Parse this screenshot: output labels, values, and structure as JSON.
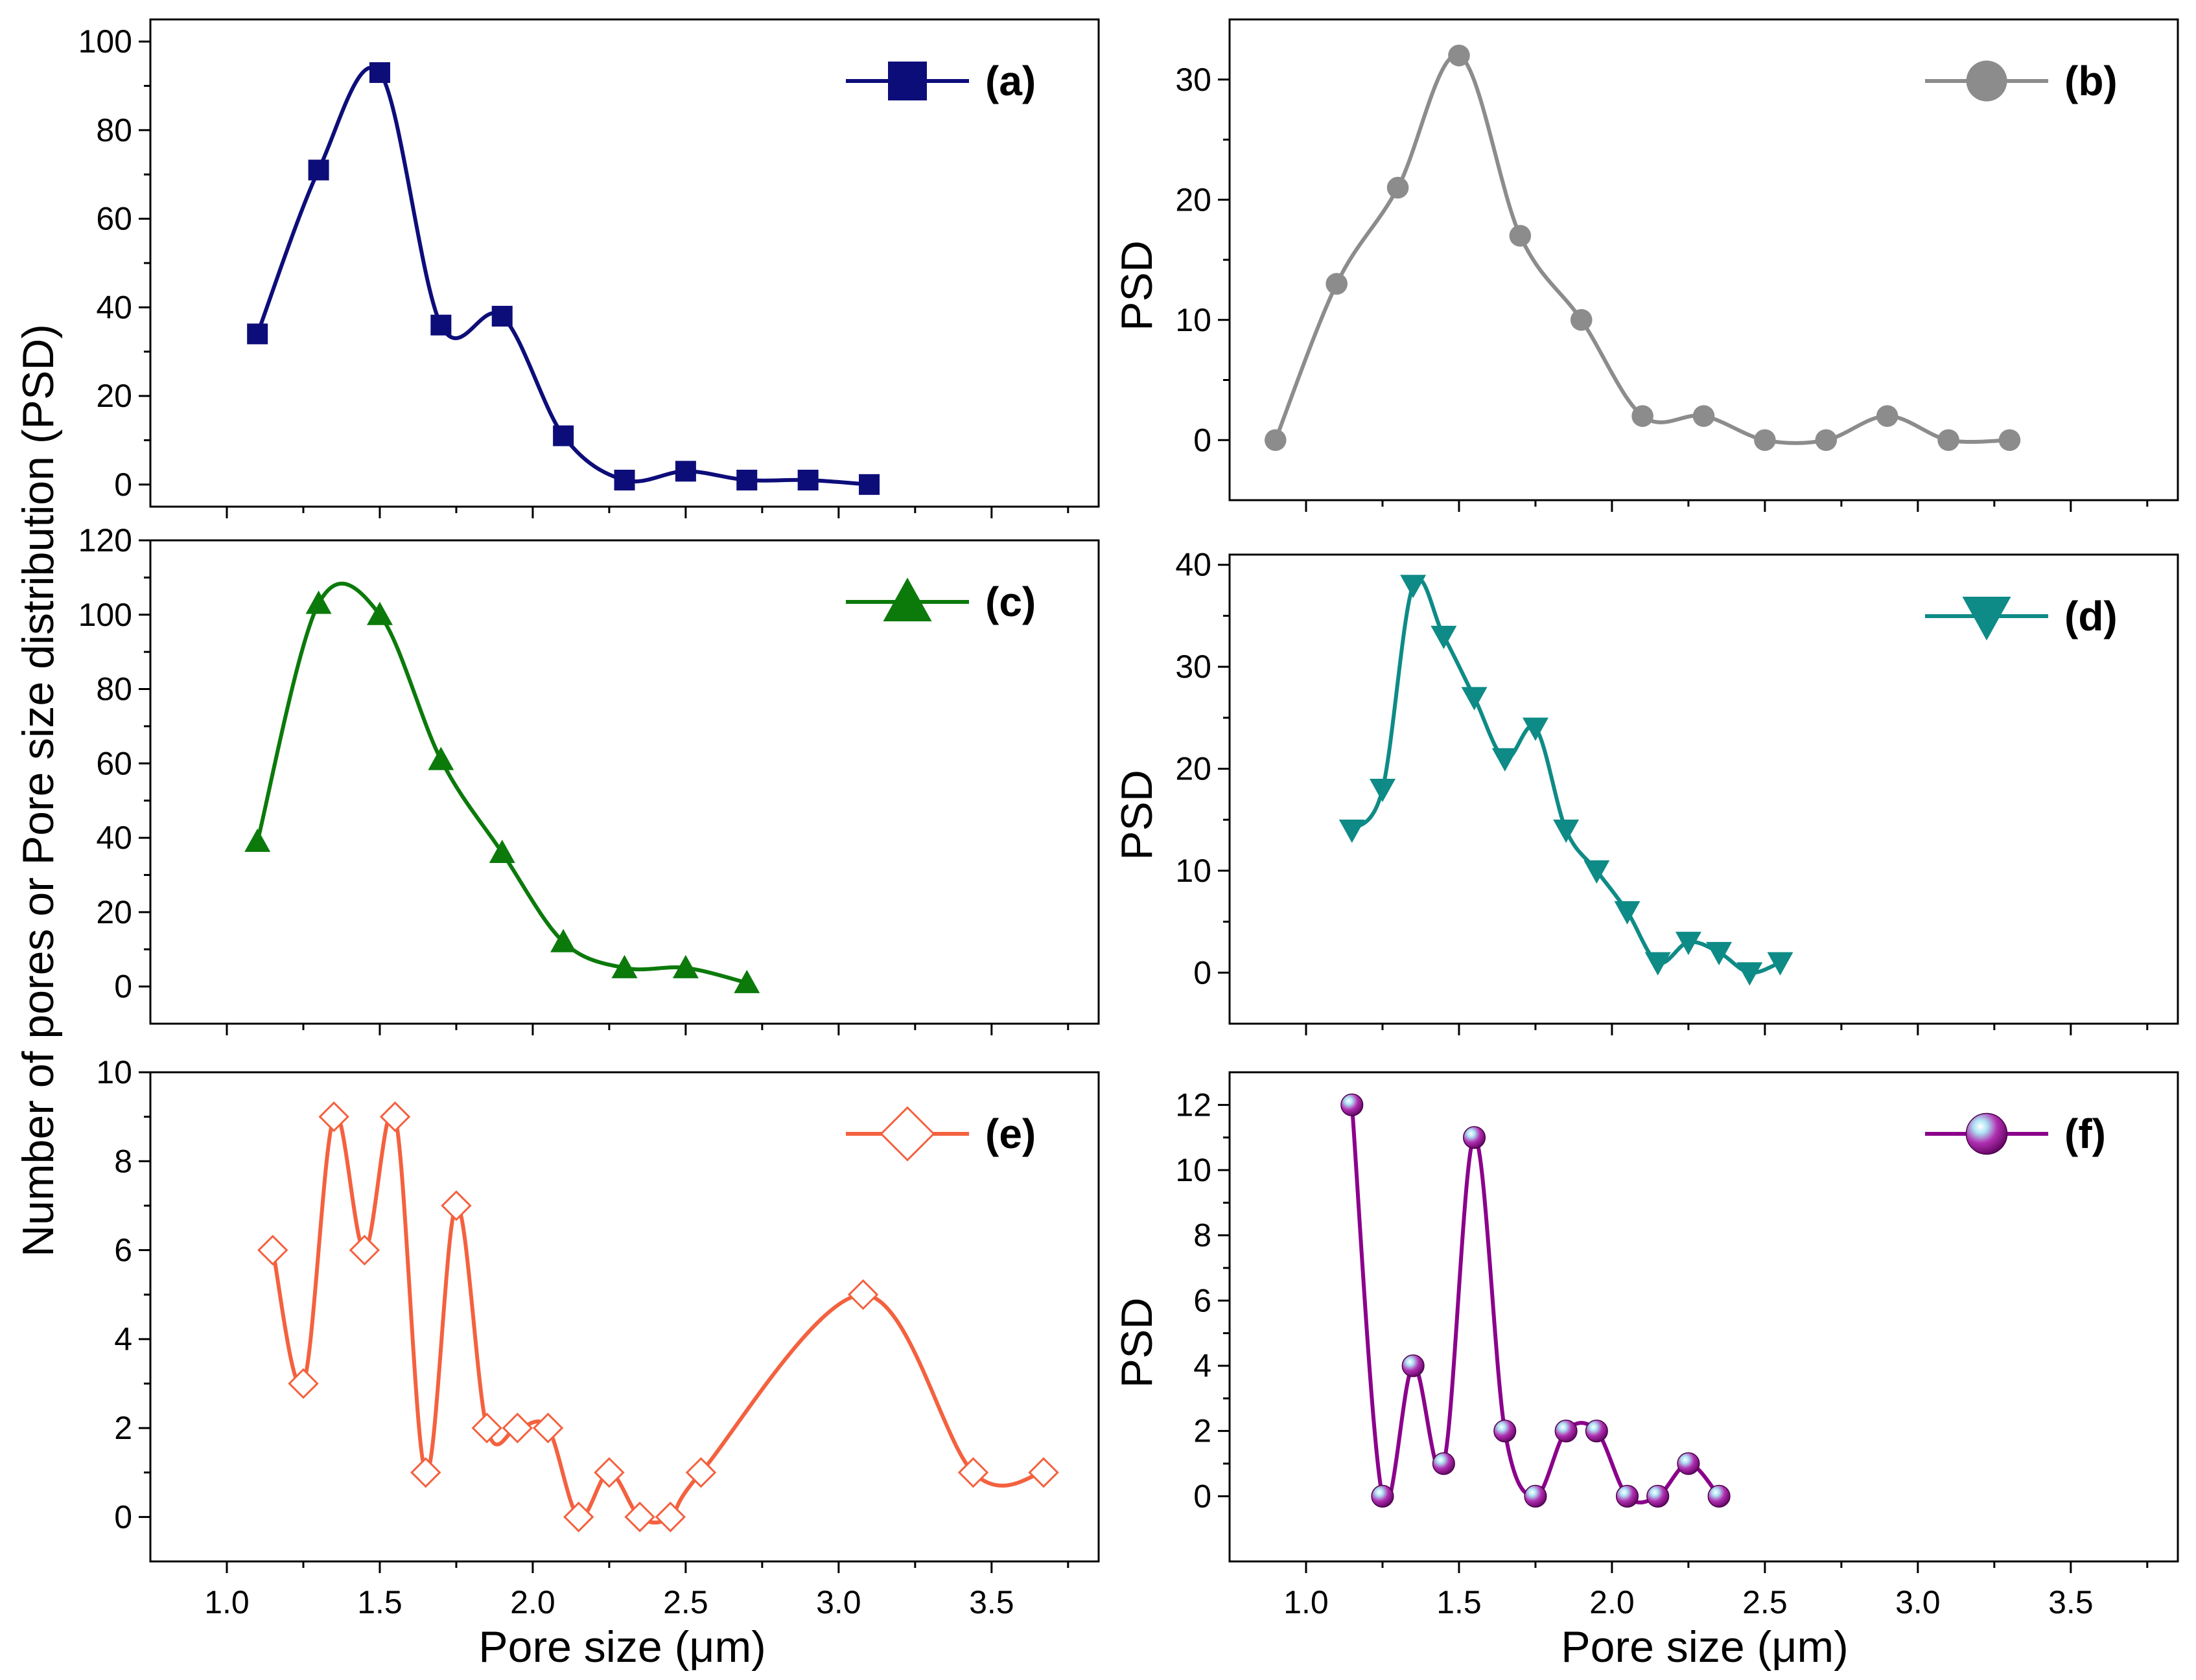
{
  "figure": {
    "shared_ylabel": "Number of pores or Pore size distribution (PSD)",
    "xlabel_left": "Pore size (μm)",
    "xlabel_right": "Pore size (μm)"
  },
  "chart_data": [
    {
      "id": "a",
      "type": "line",
      "legend": "(a)",
      "ylabel": "",
      "color": "#0d0d7a",
      "marker": "square",
      "xlim": [
        0.75,
        3.85
      ],
      "ylim": [
        -5,
        105
      ],
      "yticks": [
        0,
        20,
        40,
        60,
        80,
        100
      ],
      "xticks": [
        1.0,
        1.5,
        2.0,
        2.5,
        3.0,
        3.5
      ],
      "show_xticklabels": false,
      "series": [
        {
          "name": "(a)",
          "x": [
            1.1,
            1.3,
            1.5,
            1.7,
            1.9,
            2.1,
            2.3,
            2.5,
            2.7,
            2.9,
            3.1
          ],
          "y": [
            34,
            71,
            93,
            36,
            38,
            11,
            1,
            3,
            1,
            1,
            0
          ]
        }
      ]
    },
    {
      "id": "b",
      "type": "line",
      "legend": "(b)",
      "ylabel": "PSD",
      "color": "#8c8c8c",
      "marker": "circle",
      "xlim": [
        0.75,
        3.85
      ],
      "ylim": [
        -5,
        35
      ],
      "yticks": [
        0,
        10,
        20,
        30
      ],
      "xticks": [
        1.0,
        1.5,
        2.0,
        2.5,
        3.0,
        3.5
      ],
      "show_xticklabels": false,
      "series": [
        {
          "name": "(b)",
          "x": [
            0.9,
            1.1,
            1.3,
            1.5,
            1.7,
            1.9,
            2.1,
            2.3,
            2.5,
            2.7,
            2.9,
            3.1,
            3.3
          ],
          "y": [
            0,
            13,
            21,
            32,
            17,
            10,
            2,
            2,
            0,
            0,
            2,
            0,
            0
          ]
        }
      ]
    },
    {
      "id": "c",
      "type": "line",
      "legend": "(c)",
      "ylabel": "",
      "color": "#0b7a0b",
      "marker": "triangle-up",
      "xlim": [
        0.75,
        3.85
      ],
      "ylim": [
        -10,
        120
      ],
      "yticks": [
        0,
        20,
        40,
        60,
        80,
        100,
        120
      ],
      "xticks": [
        1.0,
        1.5,
        2.0,
        2.5,
        3.0,
        3.5
      ],
      "show_xticklabels": false,
      "series": [
        {
          "name": "(c)",
          "x": [
            1.1,
            1.3,
            1.5,
            1.7,
            1.9,
            2.1,
            2.3,
            2.5,
            2.7
          ],
          "y": [
            39,
            103,
            100,
            61,
            36,
            12,
            5,
            5,
            1
          ]
        }
      ]
    },
    {
      "id": "d",
      "type": "line",
      "legend": "(d)",
      "ylabel": "PSD",
      "color": "#0e8b86",
      "marker": "triangle-down",
      "xlim": [
        0.75,
        3.85
      ],
      "ylim": [
        -5,
        41
      ],
      "yticks": [
        0,
        10,
        20,
        30,
        40
      ],
      "xticks": [
        1.0,
        1.5,
        2.0,
        2.5,
        3.0,
        3.5
      ],
      "show_xticklabels": false,
      "series": [
        {
          "name": "(d)",
          "x": [
            1.15,
            1.25,
            1.35,
            1.45,
            1.55,
            1.65,
            1.75,
            1.85,
            1.95,
            2.05,
            2.15,
            2.25,
            2.35,
            2.45,
            2.55
          ],
          "y": [
            14,
            18,
            38,
            33,
            27,
            21,
            24,
            14,
            10,
            6,
            1,
            3,
            2,
            0,
            1
          ]
        }
      ]
    },
    {
      "id": "e",
      "type": "line",
      "legend": "(e)",
      "ylabel": "",
      "color": "#f4613f",
      "marker": "diamond-open",
      "xlim": [
        0.75,
        3.85
      ],
      "ylim": [
        -1,
        10
      ],
      "yticks": [
        0,
        2,
        4,
        6,
        8,
        10
      ],
      "xticks": [
        1.0,
        1.5,
        2.0,
        2.5,
        3.0,
        3.5
      ],
      "show_xticklabels": true,
      "xticklabels": [
        "1.0",
        "1.5",
        "2.0",
        "2.5",
        "3.0",
        "3.5"
      ],
      "series": [
        {
          "name": "(e)",
          "x": [
            1.15,
            1.25,
            1.35,
            1.45,
            1.55,
            1.65,
            1.75,
            1.85,
            1.95,
            2.05,
            2.15,
            2.25,
            2.35,
            2.45,
            2.55,
            3.08,
            3.44,
            3.67
          ],
          "y": [
            6,
            3,
            9,
            6,
            9,
            1,
            7,
            2,
            2,
            2,
            0,
            1,
            0,
            0,
            1,
            5,
            1,
            1
          ]
        }
      ]
    },
    {
      "id": "f",
      "type": "line",
      "legend": "(f)",
      "ylabel": "PSD",
      "color": "#8b008b",
      "marker": "sphere",
      "xlim": [
        0.75,
        3.85
      ],
      "ylim": [
        -2,
        13
      ],
      "yticks": [
        0,
        2,
        4,
        6,
        8,
        10,
        12
      ],
      "xticks": [
        1.0,
        1.5,
        2.0,
        2.5,
        3.0,
        3.5
      ],
      "show_xticklabels": true,
      "xticklabels": [
        "1.0",
        "1.5",
        "2.0",
        "2.5",
        "3.0",
        "3.5"
      ],
      "series": [
        {
          "name": "(f)",
          "x": [
            1.15,
            1.25,
            1.35,
            1.45,
            1.55,
            1.65,
            1.75,
            1.85,
            1.95,
            2.05,
            2.15,
            2.25,
            2.35
          ],
          "y": [
            12,
            0,
            4,
            1,
            11,
            2,
            0,
            2,
            2,
            0,
            0,
            1,
            0
          ]
        }
      ]
    }
  ]
}
